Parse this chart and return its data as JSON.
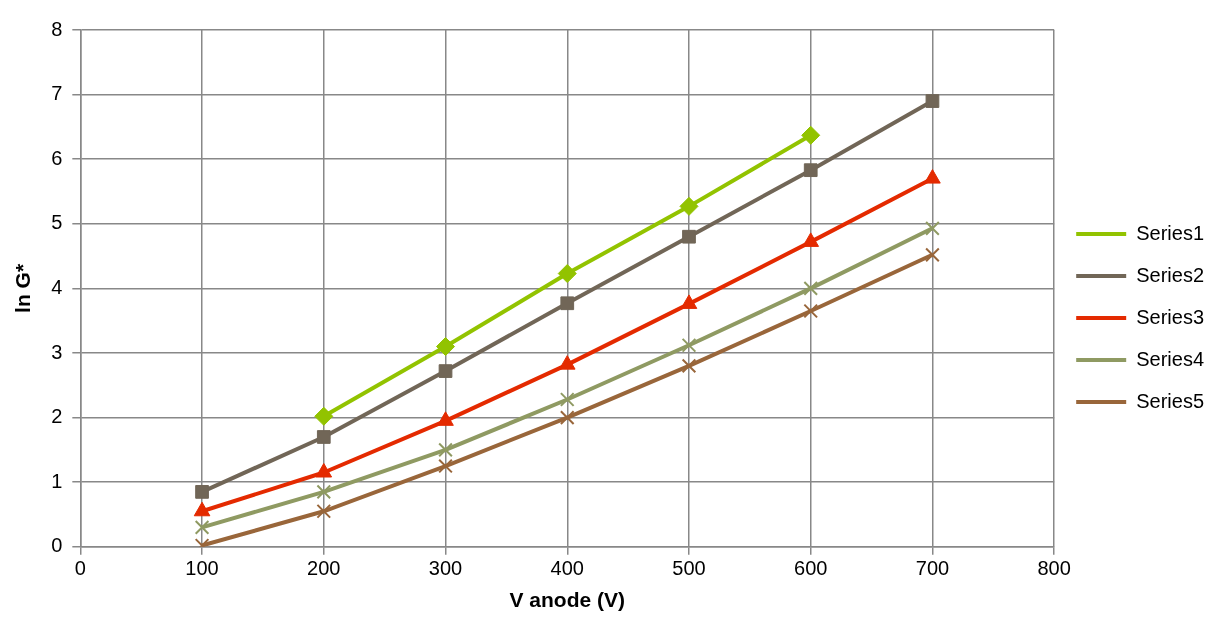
{
  "chart_data": {
    "type": "line",
    "xlabel": "V anode (V)",
    "ylabel": "ln G*",
    "xlim": [
      0,
      800
    ],
    "xticks": [
      0,
      100,
      200,
      300,
      400,
      500,
      600,
      700,
      800
    ],
    "ylim": [
      0,
      8
    ],
    "yticks": [
      0,
      1,
      2,
      3,
      4,
      5,
      6,
      7,
      8
    ],
    "grid": true,
    "legend": "right",
    "line_style": "solid",
    "series": [
      {
        "name": "Series1",
        "color": "#92c300",
        "marker": "diamond",
        "x": [
          200,
          300,
          400,
          500,
          600
        ],
        "values": [
          2.02,
          3.1,
          4.23,
          5.27,
          6.37
        ]
      },
      {
        "name": "Series2",
        "color": "#716657",
        "marker": "square",
        "x": [
          100,
          200,
          300,
          400,
          500,
          600,
          700
        ],
        "values": [
          0.85,
          1.7,
          2.72,
          3.77,
          4.8,
          5.83,
          6.9
        ]
      },
      {
        "name": "Series3",
        "color": "#e42a00",
        "marker": "triangle",
        "x": [
          100,
          200,
          300,
          400,
          500,
          600,
          700
        ],
        "values": [
          0.55,
          1.15,
          1.95,
          2.82,
          3.76,
          4.72,
          5.7
        ]
      },
      {
        "name": "Series4",
        "color": "#8f9a62",
        "marker": "cross",
        "x": [
          100,
          200,
          300,
          400,
          500,
          600,
          700
        ],
        "values": [
          0.3,
          0.85,
          1.5,
          2.28,
          3.12,
          4.0,
          4.93
        ]
      },
      {
        "name": "Series5",
        "color": "#99663a",
        "marker": "cross",
        "x": [
          100,
          200,
          300,
          400,
          500,
          600,
          700
        ],
        "values": [
          0.02,
          0.55,
          1.25,
          2.0,
          2.8,
          3.65,
          4.52
        ]
      }
    ]
  }
}
